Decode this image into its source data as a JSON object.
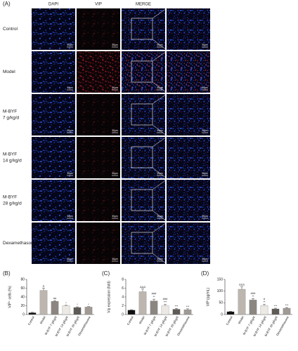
{
  "panel_a": {
    "label": "(A)",
    "columns": [
      "DAPI",
      "VIP",
      "MERGE"
    ],
    "rows": [
      [
        "Control"
      ],
      [
        "Model"
      ],
      [
        "M-BYF",
        "7 g/kg/d"
      ],
      [
        "M-BYF",
        "14 g/kg/d"
      ],
      [
        "M-BYF",
        "28 g/kg/d"
      ],
      [
        "Dexamethasone"
      ]
    ],
    "scale_bar": "50μm"
  },
  "chart_data": [
    {
      "type": "bar",
      "label": "(B)",
      "ylabel": "VIP⁺ cells (%)",
      "categories": [
        "Control",
        "Model",
        "M-BYF 7 g/kg/d",
        "M-BYF 14 g/kg/d",
        "M-BYF 28 g/kg/d",
        "Dexamethasone"
      ],
      "values": [
        4,
        55,
        30,
        20,
        16,
        17
      ],
      "errors": [
        1,
        5,
        1.5,
        1,
        1.5,
        1
      ],
      "colors": [
        "#111111",
        "#bdb6ae",
        "#8c8680",
        "#ece9e4",
        "#5e5a56",
        "#a09a94"
      ],
      "annotations": [
        [],
        [
          "Δ"
        ],
        [
          "##"
        ],
        [
          "*"
        ],
        [
          "*"
        ],
        [
          "*"
        ]
      ],
      "ylim": [
        0,
        80
      ],
      "yticks": [
        0,
        20,
        40,
        60,
        80
      ]
    },
    {
      "type": "bar",
      "label": "(C)",
      "ylabel": "Vip expression (fold)",
      "categories": [
        "Control",
        "Model",
        "M-BYF 7 g/kg/d",
        "M-BYF 14 g/kg/d",
        "M-BYF 28 g/kg/d",
        "Dexamethasone"
      ],
      "values": [
        1,
        5.2,
        3.1,
        2.0,
        1.2,
        1.1
      ],
      "errors": [
        0.1,
        0.6,
        0.4,
        0.3,
        0.2,
        0.2
      ],
      "colors": [
        "#111111",
        "#bdb6ae",
        "#8c8680",
        "#ece9e4",
        "#5e5a56",
        "#a09a94"
      ],
      "annotations": [
        [],
        [
          "ΔΔΔ"
        ],
        [
          "###",
          "**"
        ],
        [
          "###",
          "***"
        ],
        [
          "***"
        ],
        [
          "***"
        ]
      ],
      "ylim": [
        0,
        8
      ],
      "yticks": [
        0,
        2,
        4,
        6,
        8
      ]
    },
    {
      "type": "bar",
      "label": "(D)",
      "ylabel": "VIP (pg/mL)",
      "categories": [
        "Control",
        "Model",
        "M-BYF 7 g/kg/d",
        "M-BYF 14 g/kg/d",
        "M-BYF 28 g/kg/d",
        "Dexamethasone"
      ],
      "values": [
        12,
        108,
        62,
        38,
        24,
        27
      ],
      "errors": [
        2,
        10,
        6,
        5,
        3,
        3
      ],
      "colors": [
        "#111111",
        "#bdb6ae",
        "#8c8680",
        "#ece9e4",
        "#5e5a56",
        "#a09a94"
      ],
      "annotations": [
        [],
        [
          "ΔΔΔ"
        ],
        [
          "###",
          "**"
        ],
        [
          "#",
          "**"
        ],
        [
          "***"
        ],
        [
          "***"
        ]
      ],
      "ylim": [
        0,
        150
      ],
      "yticks": [
        0,
        50,
        100,
        150
      ]
    }
  ]
}
